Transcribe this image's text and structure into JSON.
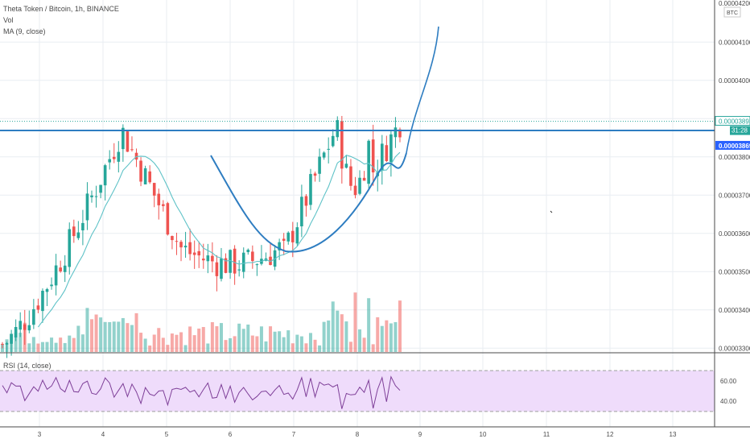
{
  "header": {
    "symbol_line": "Theta Token / Bitcoin, 1h, BINANCE",
    "vol_label": "Vol",
    "ma_label": "MA (9, close)",
    "currency": "BTC"
  },
  "price_axis": {
    "top_partial_label": "0.00004200",
    "labels": [
      "0.00004100",
      "0.00004000",
      "0.00003900",
      "0.00003800",
      "0.00003700",
      "0.00003600",
      "0.00003500",
      "0.00003400",
      "0.00003300"
    ],
    "last_price_label": "0.00003893",
    "countdown_label": "31:28",
    "line_price_label": "0.00003869"
  },
  "rsi": {
    "label": "RSI (14, close)",
    "axis_labels": [
      "60.00",
      "40.00"
    ],
    "upper": 70,
    "lower": 30
  },
  "time_axis": {
    "labels": [
      "3",
      "4",
      "5",
      "6",
      "7",
      "8",
      "9",
      "10",
      "11",
      "12",
      "13"
    ]
  },
  "colors": {
    "up": "#26a69a",
    "down": "#ef5350",
    "ma": "#5ec2c7",
    "drawing": "#2e7dc1",
    "rsi_line": "#7e3f98",
    "rsi_band": "#efdcfb",
    "grid": "#e9edf2",
    "last_price_badge": "#2a6fd6",
    "line_price_badge": "#2962ff"
  },
  "chart_data": {
    "type": "candlestick",
    "y_unit": "BTC",
    "ylim": [
      3.29e-05,
      4.21e-05
    ],
    "grid": true,
    "x_tick_labels": [
      "3",
      "4",
      "5",
      "6",
      "7",
      "8",
      "9",
      "10",
      "11",
      "12",
      "13"
    ],
    "horizontal_line": 3.869e-05,
    "last_price": 3.893e-05,
    "shapes": [
      "cup-shaped curve drawn under the price bottom",
      "rising projection line above the last candle"
    ],
    "candle_series": {
      "points": 90,
      "start": 3.31e-05,
      "rises_to": 3.87e-05,
      "dips_to": 3.52e-05,
      "ends_at": 3.89e-05
    },
    "rsi_period": 14,
    "rsi_axis_labels": [
      60,
      40
    ]
  }
}
